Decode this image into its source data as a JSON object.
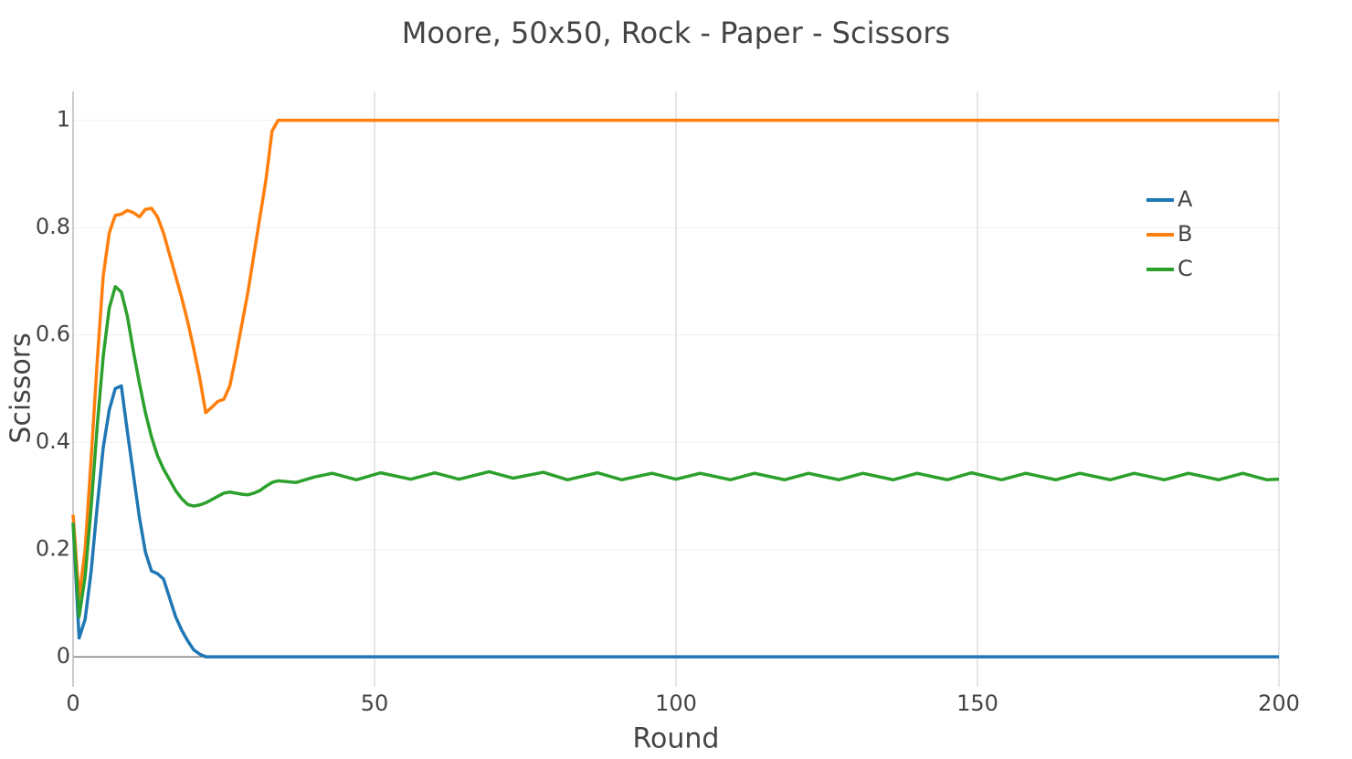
{
  "chart_data": {
    "type": "line",
    "title": "Moore, 50x50, Rock - Paper - Scissors",
    "x_label": "Round",
    "y_label": "Scissors",
    "x": [
      0,
      1,
      2,
      3,
      4,
      5,
      6,
      7,
      8,
      9,
      10,
      11,
      12,
      13,
      14,
      15,
      16,
      17,
      18,
      19,
      20,
      21,
      22,
      23,
      24,
      25,
      26,
      27,
      28,
      29,
      30,
      31,
      32,
      33,
      34,
      37,
      40,
      43,
      47,
      51,
      56,
      60,
      64,
      69,
      73,
      78,
      82,
      87,
      91,
      96,
      100,
      104,
      109,
      113,
      118,
      122,
      127,
      131,
      136,
      140,
      145,
      149,
      154,
      158,
      163,
      167,
      172,
      176,
      181,
      185,
      190,
      194,
      198,
      200
    ],
    "series": [
      {
        "name": "A",
        "color": "#1f77b4",
        "values": [
          0.25,
          0.035,
          0.07,
          0.16,
          0.28,
          0.39,
          0.46,
          0.5,
          0.505,
          0.42,
          0.34,
          0.26,
          0.195,
          0.16,
          0.155,
          0.145,
          0.11,
          0.075,
          0.05,
          0.03,
          0.013,
          0.005,
          0,
          0,
          0,
          0,
          0,
          0,
          0,
          0,
          0,
          0,
          0,
          0,
          0,
          0,
          0,
          0,
          0,
          0,
          0,
          0,
          0,
          0,
          0,
          0,
          0,
          0,
          0,
          0,
          0,
          0,
          0,
          0,
          0,
          0,
          0,
          0,
          0,
          0,
          0,
          0,
          0,
          0,
          0,
          0,
          0,
          0,
          0,
          0,
          0,
          0,
          0,
          0
        ]
      },
      {
        "name": "B",
        "color": "#ff7f0e",
        "values": [
          0.265,
          0.11,
          0.2,
          0.37,
          0.55,
          0.71,
          0.79,
          0.823,
          0.825,
          0.832,
          0.828,
          0.82,
          0.834,
          0.836,
          0.82,
          0.79,
          0.75,
          0.71,
          0.67,
          0.625,
          0.575,
          0.52,
          0.455,
          0.465,
          0.476,
          0.48,
          0.505,
          0.56,
          0.62,
          0.68,
          0.75,
          0.82,
          0.89,
          0.98,
          1,
          1,
          1,
          1,
          1,
          1,
          1,
          1,
          1,
          1,
          1,
          1,
          1,
          1,
          1,
          1,
          1,
          1,
          1,
          1,
          1,
          1,
          1,
          1,
          1,
          1,
          1,
          1,
          1,
          1,
          1,
          1,
          1,
          1,
          1,
          1,
          1,
          1,
          1,
          1
        ]
      },
      {
        "name": "C",
        "color": "#2ca02c",
        "values": [
          0.25,
          0.075,
          0.15,
          0.28,
          0.43,
          0.56,
          0.65,
          0.69,
          0.68,
          0.635,
          0.57,
          0.51,
          0.455,
          0.41,
          0.375,
          0.35,
          0.33,
          0.31,
          0.295,
          0.284,
          0.281,
          0.283,
          0.287,
          0.293,
          0.299,
          0.305,
          0.307,
          0.305,
          0.303,
          0.302,
          0.305,
          0.31,
          0.318,
          0.325,
          0.328,
          0.325,
          0.335,
          0.342,
          0.33,
          0.343,
          0.331,
          0.343,
          0.331,
          0.345,
          0.333,
          0.344,
          0.33,
          0.343,
          0.33,
          0.342,
          0.331,
          0.342,
          0.33,
          0.342,
          0.33,
          0.342,
          0.33,
          0.342,
          0.33,
          0.342,
          0.33,
          0.343,
          0.33,
          0.342,
          0.33,
          0.342,
          0.33,
          0.342,
          0.33,
          0.342,
          0.33,
          0.342,
          0.33,
          0.331
        ]
      }
    ],
    "xlim": [
      0,
      200
    ],
    "xticks": [
      0,
      50,
      100,
      150,
      200
    ],
    "ylim": [
      -0.056,
      1.054
    ],
    "yticks": [
      0,
      0.2,
      0.4,
      0.6,
      0.8,
      1
    ],
    "grid": true,
    "legend_position": "top-right"
  }
}
